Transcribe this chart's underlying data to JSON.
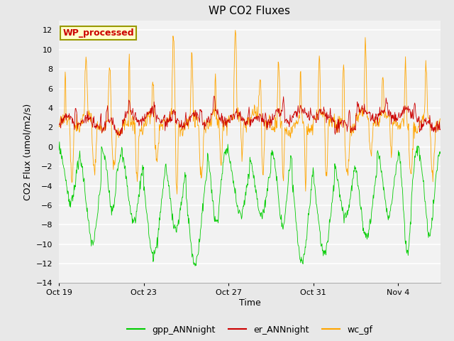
{
  "title": "WP CO2 Fluxes",
  "xlabel": "Time",
  "ylabel": "CO2 Flux (umol/m2/s)",
  "ylim": [
    -14,
    13
  ],
  "yticks": [
    -14,
    -12,
    -10,
    -8,
    -6,
    -4,
    -2,
    0,
    2,
    4,
    6,
    8,
    10,
    12
  ],
  "xtick_labels": [
    "Oct 19",
    "Oct 23",
    "Oct 27",
    "Oct 31",
    "Nov 4"
  ],
  "xtick_positions": [
    0,
    4,
    8,
    12,
    16
  ],
  "n_days": 18,
  "pts_per_day": 48,
  "colors": {
    "gpp": "#00CC00",
    "er": "#CC0000",
    "wc": "#FFA500"
  },
  "legend_labels": [
    "gpp_ANNnight",
    "er_ANNnight",
    "wc_gf"
  ],
  "annotation_text": "WP_processed",
  "annotation_color": "#CC0000",
  "annotation_bg": "#FFFFCC",
  "annotation_border": "#999900",
  "fig_bg": "#E8E8E8",
  "plot_bg": "#F2F2F2",
  "grid_color": "white",
  "title_fontsize": 11,
  "label_fontsize": 9,
  "tick_fontsize": 8,
  "legend_fontsize": 9,
  "line_width": 0.6
}
